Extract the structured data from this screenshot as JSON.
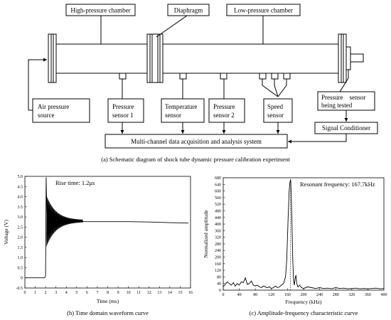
{
  "schematic": {
    "labels": {
      "high_pressure_chamber": "High-pressure chamber",
      "diaphragm": "Diaphragm",
      "low_pressure_chamber": "Low-pressure chamber",
      "air_source_l1": "Air pressure",
      "air_source_l2": "source",
      "pressure_sensor1_l1": "Pressure",
      "pressure_sensor1_l2": "sensor 1",
      "temperature_sensor_l1": "Temperature",
      "temperature_sensor_l2": "sensor",
      "pressure_sensor2_l1": "Pressure",
      "pressure_sensor2_l2": "sensor 2",
      "speed_sensor_l1": "Speed",
      "speed_sensor_l2": "sensor",
      "tested_sensor_l1": "Pressure    sensor",
      "tested_sensor_l2": "being tested",
      "signal_conditioner": "Signal Conditioner",
      "daq_system": "Multi-channel data acquisition and analysis system"
    },
    "caption": "(a) Schematic diagram of shock tube dynamic pressure calibration experiment"
  },
  "chart_data": [
    {
      "type": "line",
      "xlabel": "Time (ms)",
      "ylabel": "Voltage (V)",
      "xlim": [
        0,
        16
      ],
      "ylim": [
        -0.5,
        5.0
      ],
      "x_ticks": [
        "0",
        "1",
        "2",
        "3",
        "4",
        "5",
        "6",
        "7",
        "8",
        "9",
        "10",
        "11",
        "12",
        "13",
        "14",
        "15",
        "16"
      ],
      "y_ticks": [
        "-0.5",
        "0",
        "0.5",
        "1.0",
        "1.5",
        "2.0",
        "2.5",
        "3.0",
        "3.5",
        "4.0",
        "4.5",
        "5.0"
      ],
      "annotation": "Rise time: 1.2μs",
      "series": [
        {
          "x": [
            0,
            1.9,
            2.0,
            2.05,
            2.12,
            2.2,
            2.35,
            2.5,
            3.0,
            4.0,
            6.0,
            8.0,
            10.0,
            12.0,
            14.0,
            15.8
          ],
          "y": [
            0,
            0,
            0.1,
            4.95,
            3.2,
            3.5,
            2.9,
            3.0,
            2.82,
            2.78,
            2.77,
            2.77,
            2.77,
            2.75,
            2.72,
            2.7
          ]
        }
      ],
      "caption": "(b) Time domain waveform curve"
    },
    {
      "type": "line",
      "xlabel": "Frequency (kHz)",
      "ylabel": "Normalized amplitude",
      "xlim": [
        0,
        400
      ],
      "ylim": [
        0,
        680
      ],
      "x_ticks": [
        "0",
        "40",
        "80",
        "120",
        "160",
        "200",
        "240",
        "280",
        "320",
        "360",
        "400"
      ],
      "y_ticks": [
        "0",
        "40",
        "80",
        "120",
        "160",
        "200",
        "240",
        "280",
        "320",
        "360",
        "400",
        "440",
        "480",
        "520",
        "560",
        "600",
        "640",
        "680"
      ],
      "annotation": "Resonant frequency: 167.7kHz",
      "peak_x": 167.7,
      "series": [
        {
          "x": [
            0,
            5,
            10,
            15,
            20,
            25,
            30,
            35,
            40,
            45,
            50,
            55,
            60,
            65,
            70,
            75,
            80,
            85,
            90,
            95,
            100,
            105,
            110,
            115,
            120,
            125,
            130,
            135,
            140,
            145,
            150,
            155,
            158,
            161,
            164,
            166,
            167.7,
            169,
            171,
            173,
            175,
            177,
            179,
            181,
            183,
            186,
            190,
            195,
            200,
            210,
            220,
            230,
            240,
            250,
            260,
            270,
            280,
            290,
            300,
            310,
            320,
            330,
            340,
            350,
            360,
            370,
            380,
            390,
            400
          ],
          "y": [
            20,
            35,
            50,
            40,
            30,
            45,
            25,
            40,
            30,
            50,
            45,
            75,
            35,
            40,
            55,
            30,
            25,
            30,
            20,
            15,
            25,
            20,
            15,
            20,
            10,
            15,
            25,
            15,
            20,
            30,
            40,
            80,
            180,
            400,
            600,
            650,
            670,
            600,
            420,
            200,
            60,
            30,
            70,
            90,
            40,
            20,
            30,
            15,
            10,
            20,
            15,
            10,
            15,
            10,
            12,
            8,
            15,
            10,
            12,
            8,
            10,
            12,
            8,
            10,
            8,
            10,
            12,
            8,
            10
          ]
        }
      ],
      "caption": "(c) Amplitude-frequency characteristic curve"
    }
  ]
}
